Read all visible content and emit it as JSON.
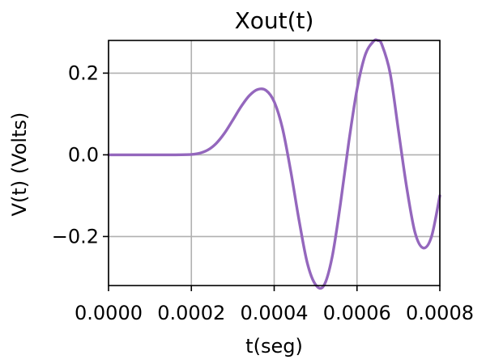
{
  "chart_data": {
    "type": "line",
    "title": "Xout(t)",
    "xlabel": "t(seg)",
    "ylabel": "V(t) (Volts)",
    "xlim": [
      0.0,
      0.0008
    ],
    "ylim": [
      -0.32,
      0.28
    ],
    "x_ticks": [
      0.0,
      0.0002,
      0.0004,
      0.0006,
      0.0008
    ],
    "x_tick_labels": [
      "0.0000",
      "0.0002",
      "0.0004",
      "0.0006",
      "0.0008"
    ],
    "y_ticks": [
      -0.2,
      0.0,
      0.2
    ],
    "y_tick_labels": [
      "−0.2",
      "0.0",
      "0.2"
    ],
    "grid": true,
    "series": [
      {
        "color": "#9467bd",
        "x": [
          0.0,
          5e-05,
          0.0001,
          0.00015,
          0.0002,
          0.00022,
          0.00024,
          0.00026,
          0.00028,
          0.0003,
          0.00032,
          0.00034,
          0.00036,
          0.00038,
          0.0004,
          0.00042,
          0.00044,
          0.00046,
          0.00048,
          0.0005,
          0.00052,
          0.00054,
          0.00056,
          0.00058,
          0.0006,
          0.00062,
          0.00064,
          0.00065,
          0.00066,
          0.00068,
          0.0007,
          0.00072,
          0.00074,
          0.00076,
          0.00078,
          0.0008
        ],
        "y": [
          0.0,
          0.0,
          0.0,
          0.0,
          0.001,
          0.004,
          0.012,
          0.028,
          0.053,
          0.085,
          0.118,
          0.145,
          0.16,
          0.158,
          0.13,
          0.065,
          -0.04,
          -0.16,
          -0.265,
          -0.318,
          -0.32,
          -0.25,
          -0.12,
          0.03,
          0.16,
          0.245,
          0.278,
          0.28,
          0.27,
          0.2,
          0.06,
          -0.08,
          -0.19,
          -0.228,
          -0.2,
          -0.1
        ]
      }
    ]
  }
}
